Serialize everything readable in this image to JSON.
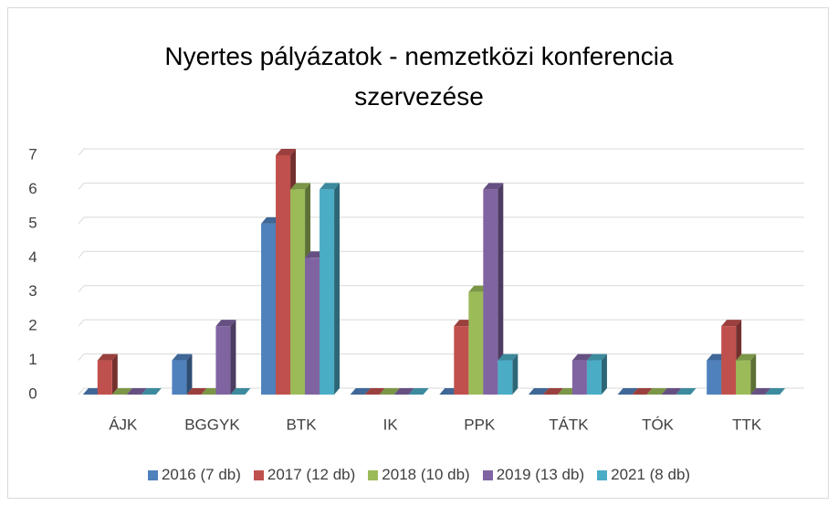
{
  "chart_data": {
    "type": "bar3d",
    "title": "Nyertes pályázatok - nemzetközi konferencia szervezése",
    "categories": [
      "ÁJK",
      "BGGYK",
      "BTK",
      "IK",
      "PPK",
      "TÁTK",
      "TÓK",
      "TTK"
    ],
    "series": [
      {
        "name": "2016 (7 db)",
        "color": "#4f81bd",
        "values": [
          0,
          1,
          5,
          0,
          0,
          0,
          0,
          1
        ]
      },
      {
        "name": "2017 (12 db)",
        "color": "#c0504d",
        "values": [
          1,
          0,
          7,
          0,
          2,
          0,
          0,
          2
        ]
      },
      {
        "name": "2018 (10 db)",
        "color": "#9bbb59",
        "values": [
          0,
          0,
          6,
          0,
          3,
          0,
          0,
          1
        ]
      },
      {
        "name": "2019 (13 db)",
        "color": "#8064a2",
        "values": [
          0,
          2,
          4,
          0,
          6,
          1,
          0,
          0
        ]
      },
      {
        "name": "2021 (8 db)",
        "color": "#4bacc6",
        "values": [
          0,
          0,
          6,
          0,
          1,
          1,
          0,
          0
        ]
      }
    ],
    "ylim": [
      0,
      7
    ],
    "yticks": [
      0,
      1,
      2,
      3,
      4,
      5,
      6,
      7
    ],
    "grid": true,
    "legend": "bottom"
  }
}
